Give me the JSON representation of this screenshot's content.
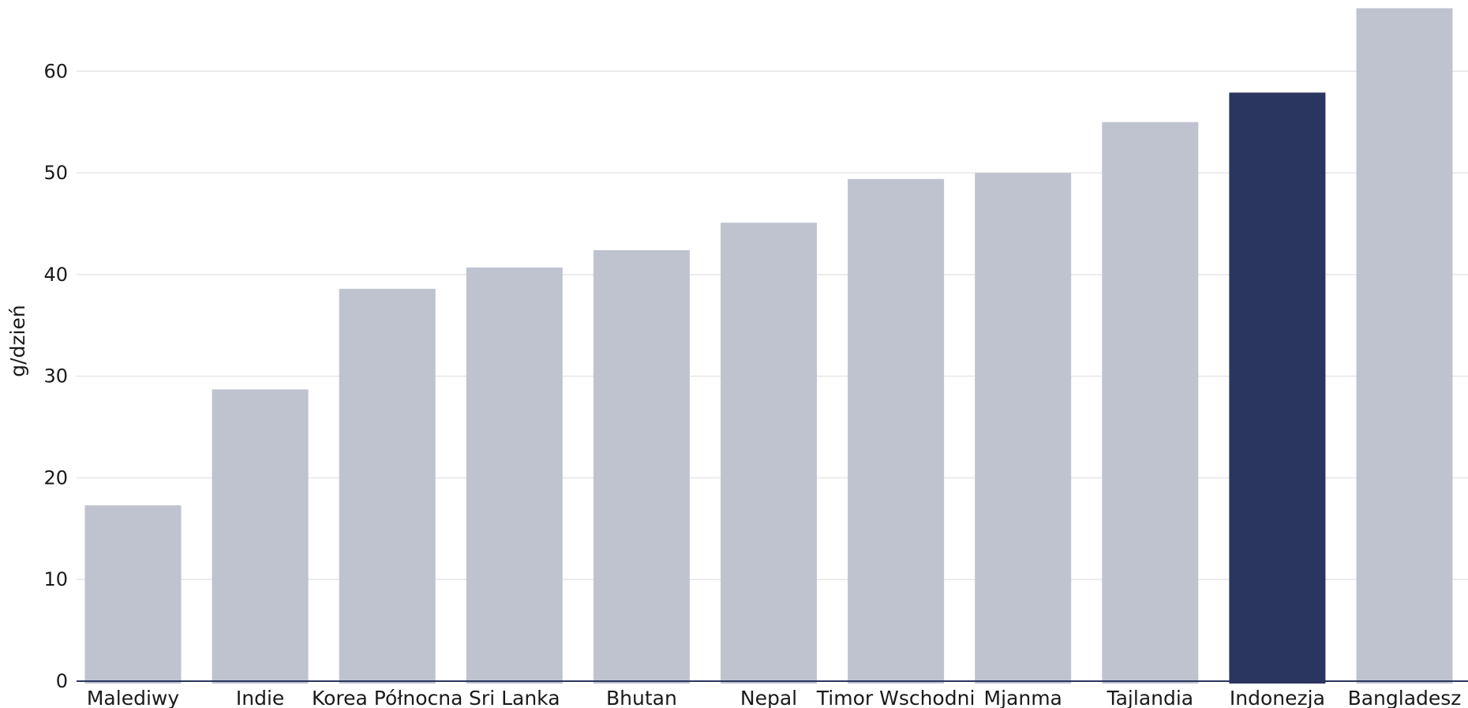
{
  "chart_data": {
    "type": "bar",
    "title": "",
    "xlabel": "",
    "ylabel": "g/dzień",
    "ylim": [
      0,
      66
    ],
    "yticks": [
      0,
      10,
      20,
      30,
      40,
      50,
      60
    ],
    "grid": true,
    "legend": "none",
    "categories": [
      "Malediwy",
      "Indie",
      "Korea Północna",
      "Sri Lanka",
      "Bhutan",
      "Nepal",
      "Timor Wschodni",
      "Mjanma",
      "Tajlandia",
      "Indonezja",
      "Bangladesz"
    ],
    "values": [
      17.3,
      28.7,
      38.6,
      40.7,
      42.4,
      45.1,
      49.4,
      50.0,
      55.0,
      57.9,
      66.2
    ],
    "highlight": "Indonezja",
    "colors": {
      "bar": "#bfc3d0",
      "highlight": "#2a3560",
      "axis": "#2a3560",
      "grid": "#e6e6e6"
    }
  }
}
